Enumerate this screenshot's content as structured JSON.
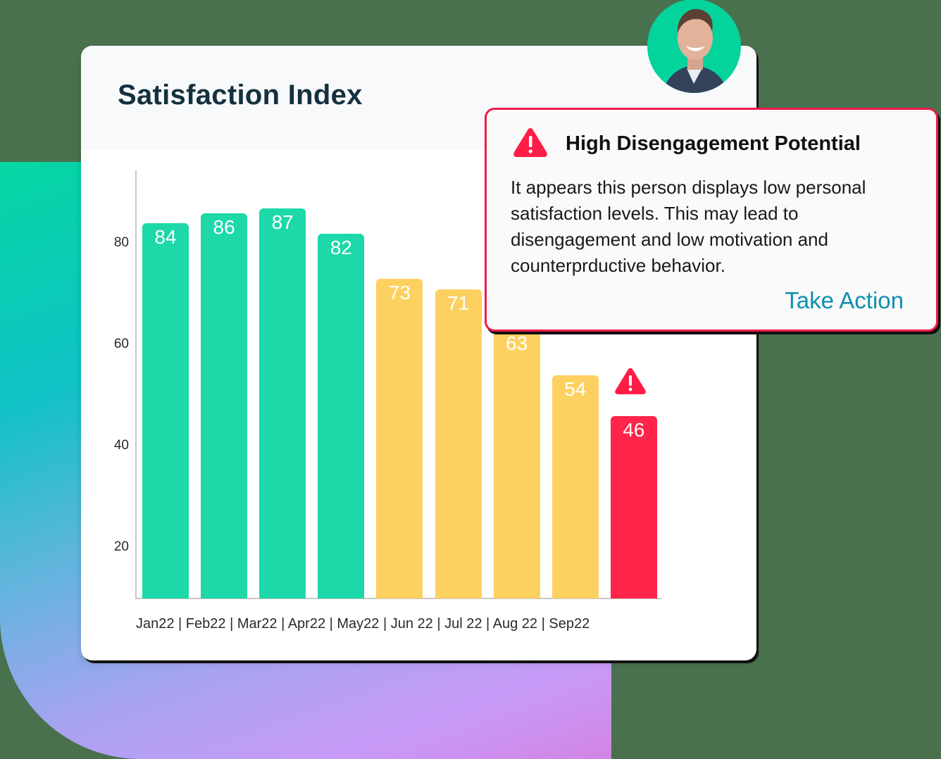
{
  "card": {
    "title": "Satisfaction Index"
  },
  "chart_data": {
    "type": "bar",
    "title": "Satisfaction Index",
    "xlabel": "",
    "ylabel": "",
    "categories": [
      "Jan22",
      "Feb22",
      "Mar22",
      "Apr22",
      "May22",
      "Jun 22",
      "Jul 22",
      "Aug 22",
      "Sep22"
    ],
    "values": [
      84,
      86,
      87,
      82,
      73,
      71,
      63,
      54,
      46
    ],
    "bar_colors": [
      "#1dd8a9",
      "#1dd8a9",
      "#1dd8a9",
      "#1dd8a9",
      "#fdd160",
      "#fdd160",
      "#fdd160",
      "#fdd160",
      "#ff2449"
    ],
    "y_ticks": [
      20,
      40,
      60,
      80
    ],
    "ylim": [
      10,
      95
    ],
    "grid": false,
    "data_labels": true,
    "annotations": [
      {
        "category": "Sep22",
        "type": "warning-icon"
      }
    ],
    "x_tick_label_text": "Jan22 | Feb22 | Mar22 | Apr22 | May22 | Jun 22 | Jul 22 | Aug 22 | Sep22"
  },
  "alert": {
    "title": "High Disengagement Potential",
    "body": "It appears this person displays low personal satisfaction levels. This may lead to disengagement and low motivation and counterprductive behavior.",
    "action_label": "Take Action",
    "icon": "warning-triangle-icon"
  },
  "avatar": {
    "icon": "user-avatar"
  },
  "colors": {
    "good": "#1dd8a9",
    "warning": "#fdd160",
    "critical": "#ff2449",
    "link": "#0f8fb0",
    "title": "#15313f"
  }
}
